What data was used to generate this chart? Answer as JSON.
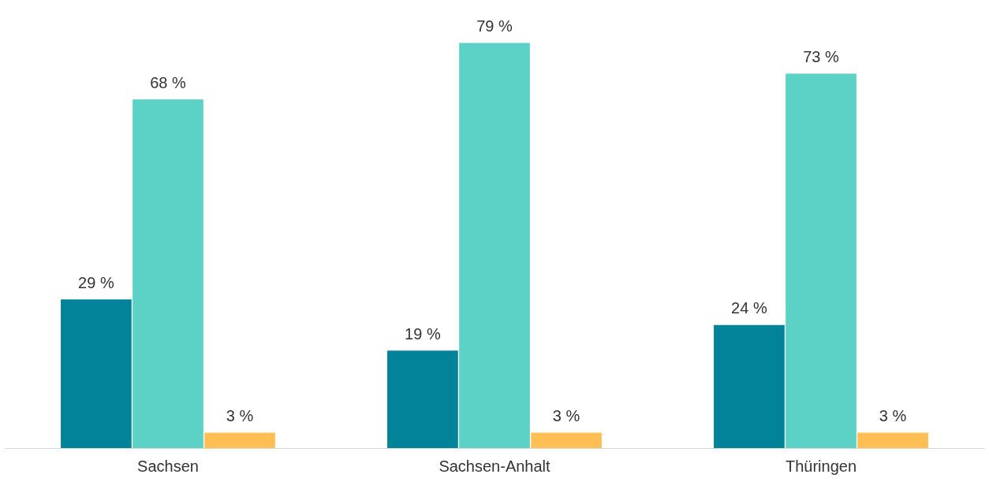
{
  "chart_data": {
    "type": "bar",
    "categories": [
      "Sachsen",
      "Sachsen-Anhalt",
      "Thüringen"
    ],
    "series": [
      {
        "color": "#03839a",
        "values": [
          29,
          19,
          24
        ],
        "value_labels": [
          "29 %",
          "19 %",
          "24 %"
        ]
      },
      {
        "color": "#5cd1c5",
        "values": [
          68,
          79,
          73
        ],
        "value_labels": [
          "68 %",
          "79 %",
          "73 %"
        ]
      },
      {
        "color": "#ffbf52",
        "values": [
          3,
          3,
          3
        ],
        "value_labels": [
          "3 %",
          "3 %",
          "3 %"
        ]
      }
    ],
    "grid": false,
    "legend": false,
    "tick_labels": "x"
  }
}
